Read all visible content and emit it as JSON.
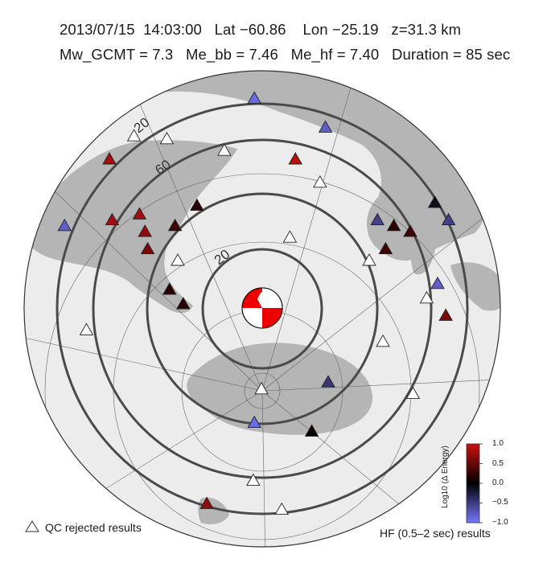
{
  "header": {
    "line1": "2013/07/15  14:03:00   Lat −60.86    Lon −25.19   z=31.3 km",
    "line2": "Mw_GCMT = 7.3   Me_bb = 7.46   Me_hf = 7.40   Duration = 85 sec"
  },
  "map": {
    "distance_labels": [
      "20",
      "60",
      "20"
    ],
    "land_color": "#b5b5b5",
    "ocean_color": "#ececec",
    "ring_color": "#4a4a4a"
  },
  "stations": [
    {
      "lon": 0.465,
      "lat": 0.17,
      "value": -0.9
    },
    {
      "lon": 0.595,
      "lat": 0.22,
      "value": -0.8
    },
    {
      "lon": 0.2,
      "lat": 0.275,
      "value": 0.8
    },
    {
      "lon": 0.54,
      "lat": 0.275,
      "value": 0.9
    },
    {
      "lon": 0.245,
      "lat": 0.235,
      "value": null
    },
    {
      "lon": 0.305,
      "lat": 0.24,
      "value": null
    },
    {
      "lon": 0.41,
      "lat": 0.26,
      "value": null
    },
    {
      "lon": 0.585,
      "lat": 0.315,
      "value": null
    },
    {
      "lon": 0.118,
      "lat": 0.39,
      "value": -0.8
    },
    {
      "lon": 0.205,
      "lat": 0.38,
      "value": 0.8
    },
    {
      "lon": 0.255,
      "lat": 0.37,
      "value": 0.8
    },
    {
      "lon": 0.265,
      "lat": 0.4,
      "value": 0.7
    },
    {
      "lon": 0.32,
      "lat": 0.39,
      "value": 0.3
    },
    {
      "lon": 0.36,
      "lat": 0.355,
      "value": 0.2
    },
    {
      "lon": 0.27,
      "lat": 0.43,
      "value": 0.6
    },
    {
      "lon": 0.325,
      "lat": 0.45,
      "value": null
    },
    {
      "lon": 0.31,
      "lat": 0.5,
      "value": 0.2
    },
    {
      "lon": 0.335,
      "lat": 0.525,
      "value": 0.2
    },
    {
      "lon": 0.53,
      "lat": 0.41,
      "value": null
    },
    {
      "lon": 0.69,
      "lat": 0.38,
      "value": -0.55
    },
    {
      "lon": 0.72,
      "lat": 0.39,
      "value": 0.2
    },
    {
      "lon": 0.75,
      "lat": 0.4,
      "value": 0.3
    },
    {
      "lon": 0.795,
      "lat": 0.35,
      "value": -0.1
    },
    {
      "lon": 0.82,
      "lat": 0.38,
      "value": -0.55
    },
    {
      "lon": 0.675,
      "lat": 0.45,
      "value": null
    },
    {
      "lon": 0.705,
      "lat": 0.43,
      "value": 0.3
    },
    {
      "lon": 0.8,
      "lat": 0.49,
      "value": -0.8
    },
    {
      "lon": 0.78,
      "lat": 0.515,
      "value": null
    },
    {
      "lon": 0.815,
      "lat": 0.545,
      "value": 0.6
    },
    {
      "lon": 0.158,
      "lat": 0.57,
      "value": null
    },
    {
      "lon": 0.7,
      "lat": 0.59,
      "value": null
    },
    {
      "lon": 0.6,
      "lat": 0.66,
      "value": -0.45
    },
    {
      "lon": 0.755,
      "lat": 0.68,
      "value": null
    },
    {
      "lon": 0.478,
      "lat": 0.672,
      "value": null
    },
    {
      "lon": 0.465,
      "lat": 0.73,
      "value": -0.9
    },
    {
      "lon": 0.57,
      "lat": 0.745,
      "value": 0.05
    },
    {
      "lon": 0.463,
      "lat": 0.83,
      "value": null
    },
    {
      "lon": 0.378,
      "lat": 0.87,
      "value": 0.7
    },
    {
      "lon": 0.515,
      "lat": 0.88,
      "value": null
    }
  ],
  "colorbar": {
    "title": "Log10 (Δ Energy)",
    "max": 1.0,
    "min": -1.0,
    "ticks": [
      "1.0",
      "0.5",
      "0.0",
      "−0.5",
      "−1.0"
    ],
    "top_color": "#cc1111",
    "mid_color": "#000000",
    "bottom_color": "#7777ff"
  },
  "legend": {
    "qc_label": "QC rejected results",
    "hf_label": "HF (0.5–2 sec) results"
  }
}
